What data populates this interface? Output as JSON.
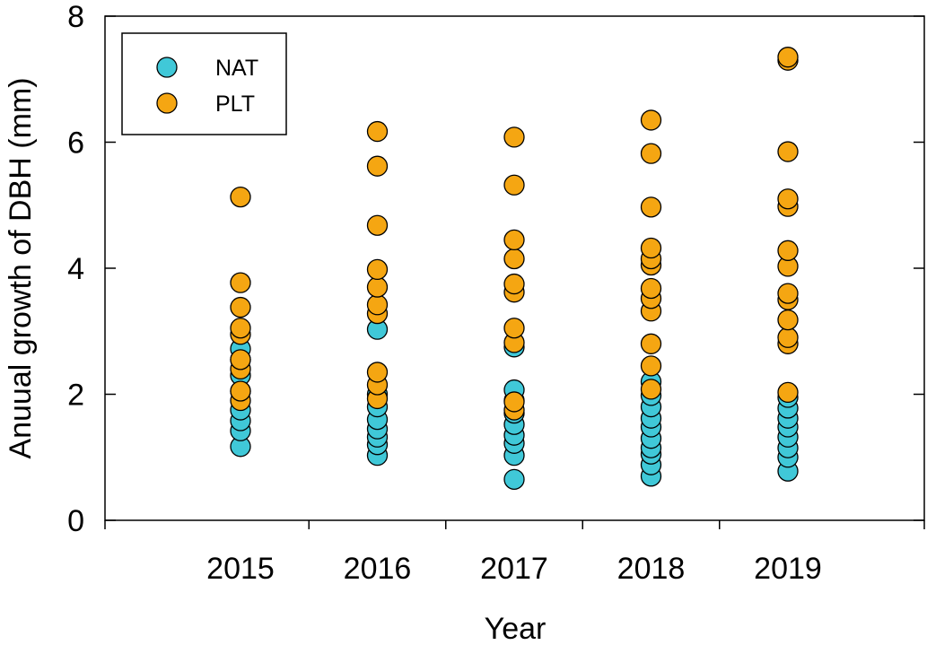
{
  "chart_data": {
    "type": "scatter",
    "xlabel": "Year",
    "ylabel": "Anuual growth of DBH (mm)",
    "categories": [
      "2015",
      "2016",
      "2017",
      "2018",
      "2019"
    ],
    "ylim": [
      0,
      8
    ],
    "yticks": [
      "0",
      "2",
      "4",
      "6",
      "8"
    ],
    "grid": false,
    "legend_position": "top-left",
    "series": [
      {
        "name": "NAT",
        "color": "#40c8d8",
        "points": [
          {
            "x": "2015",
            "y": 1.17
          },
          {
            "x": "2015",
            "y": 1.42
          },
          {
            "x": "2015",
            "y": 1.58
          },
          {
            "x": "2015",
            "y": 1.75
          },
          {
            "x": "2015",
            "y": 2.05
          },
          {
            "x": "2015",
            "y": 2.3
          },
          {
            "x": "2015",
            "y": 2.55
          },
          {
            "x": "2015",
            "y": 2.72
          },
          {
            "x": "2016",
            "y": 1.03
          },
          {
            "x": "2016",
            "y": 1.2
          },
          {
            "x": "2016",
            "y": 1.32
          },
          {
            "x": "2016",
            "y": 1.45
          },
          {
            "x": "2016",
            "y": 1.6
          },
          {
            "x": "2016",
            "y": 1.8
          },
          {
            "x": "2016",
            "y": 2.0
          },
          {
            "x": "2016",
            "y": 3.03
          },
          {
            "x": "2017",
            "y": 0.65
          },
          {
            "x": "2017",
            "y": 1.03
          },
          {
            "x": "2017",
            "y": 1.22
          },
          {
            "x": "2017",
            "y": 1.35
          },
          {
            "x": "2017",
            "y": 1.52
          },
          {
            "x": "2017",
            "y": 1.7
          },
          {
            "x": "2017",
            "y": 1.9
          },
          {
            "x": "2017",
            "y": 2.07
          },
          {
            "x": "2017",
            "y": 2.75
          },
          {
            "x": "2018",
            "y": 0.7
          },
          {
            "x": "2018",
            "y": 0.88
          },
          {
            "x": "2018",
            "y": 1.05
          },
          {
            "x": "2018",
            "y": 1.15
          },
          {
            "x": "2018",
            "y": 1.3
          },
          {
            "x": "2018",
            "y": 1.48
          },
          {
            "x": "2018",
            "y": 1.62
          },
          {
            "x": "2018",
            "y": 1.8
          },
          {
            "x": "2018",
            "y": 1.98
          },
          {
            "x": "2018",
            "y": 2.2
          },
          {
            "x": "2019",
            "y": 0.78
          },
          {
            "x": "2019",
            "y": 1.0
          },
          {
            "x": "2019",
            "y": 1.15
          },
          {
            "x": "2019",
            "y": 1.32
          },
          {
            "x": "2019",
            "y": 1.48
          },
          {
            "x": "2019",
            "y": 1.62
          },
          {
            "x": "2019",
            "y": 1.78
          },
          {
            "x": "2019",
            "y": 1.95
          }
        ]
      },
      {
        "name": "PLT",
        "color": "#f5a612",
        "points": [
          {
            "x": "2015",
            "y": 1.9
          },
          {
            "x": "2015",
            "y": 2.05
          },
          {
            "x": "2015",
            "y": 2.4
          },
          {
            "x": "2015",
            "y": 2.55
          },
          {
            "x": "2015",
            "y": 2.95
          },
          {
            "x": "2015",
            "y": 3.05
          },
          {
            "x": "2015",
            "y": 3.38
          },
          {
            "x": "2015",
            "y": 3.77
          },
          {
            "x": "2015",
            "y": 5.13
          },
          {
            "x": "2016",
            "y": 1.93
          },
          {
            "x": "2016",
            "y": 2.15
          },
          {
            "x": "2016",
            "y": 2.35
          },
          {
            "x": "2016",
            "y": 3.28
          },
          {
            "x": "2016",
            "y": 3.42
          },
          {
            "x": "2016",
            "y": 3.7
          },
          {
            "x": "2016",
            "y": 3.98
          },
          {
            "x": "2016",
            "y": 4.68
          },
          {
            "x": "2016",
            "y": 5.62
          },
          {
            "x": "2016",
            "y": 6.17
          },
          {
            "x": "2017",
            "y": 1.75
          },
          {
            "x": "2017",
            "y": 1.88
          },
          {
            "x": "2017",
            "y": 2.82
          },
          {
            "x": "2017",
            "y": 3.05
          },
          {
            "x": "2017",
            "y": 3.62
          },
          {
            "x": "2017",
            "y": 3.75
          },
          {
            "x": "2017",
            "y": 4.15
          },
          {
            "x": "2017",
            "y": 4.45
          },
          {
            "x": "2017",
            "y": 5.32
          },
          {
            "x": "2017",
            "y": 6.08
          },
          {
            "x": "2018",
            "y": 2.08
          },
          {
            "x": "2018",
            "y": 2.45
          },
          {
            "x": "2018",
            "y": 2.8
          },
          {
            "x": "2018",
            "y": 3.32
          },
          {
            "x": "2018",
            "y": 3.52
          },
          {
            "x": "2018",
            "y": 3.68
          },
          {
            "x": "2018",
            "y": 4.05
          },
          {
            "x": "2018",
            "y": 4.15
          },
          {
            "x": "2018",
            "y": 4.32
          },
          {
            "x": "2018",
            "y": 4.97
          },
          {
            "x": "2018",
            "y": 5.82
          },
          {
            "x": "2018",
            "y": 6.35
          },
          {
            "x": "2019",
            "y": 2.03
          },
          {
            "x": "2019",
            "y": 2.8
          },
          {
            "x": "2019",
            "y": 2.9
          },
          {
            "x": "2019",
            "y": 3.18
          },
          {
            "x": "2019",
            "y": 3.5
          },
          {
            "x": "2019",
            "y": 3.6
          },
          {
            "x": "2019",
            "y": 4.03
          },
          {
            "x": "2019",
            "y": 4.28
          },
          {
            "x": "2019",
            "y": 4.98
          },
          {
            "x": "2019",
            "y": 5.1
          },
          {
            "x": "2019",
            "y": 5.85
          },
          {
            "x": "2019",
            "y": 7.3
          },
          {
            "x": "2019",
            "y": 7.35
          }
        ]
      }
    ]
  }
}
